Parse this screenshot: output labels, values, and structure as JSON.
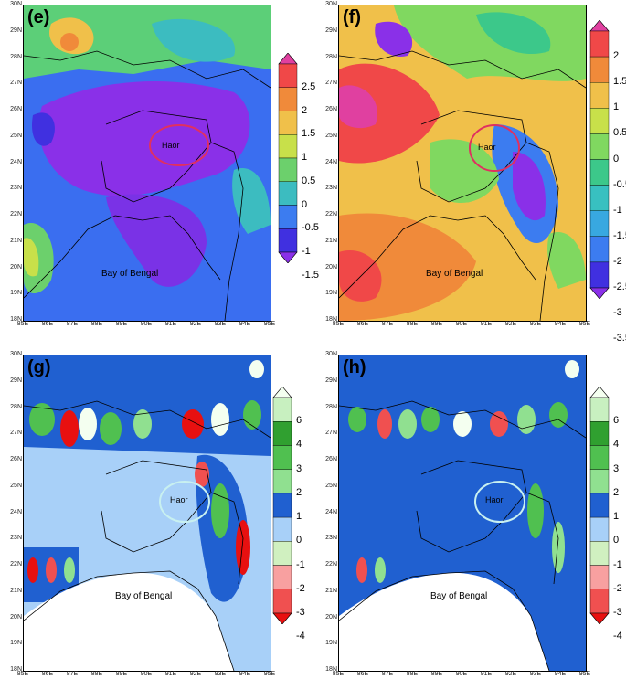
{
  "panels": [
    {
      "label": "(e)",
      "haor": "Haor",
      "bay": "Bay of Bengal",
      "colorbar": {
        "labels": [
          "2.5",
          "2",
          "1.5",
          "1",
          "0.5",
          "0",
          "-0.5",
          "-1",
          "-1.5"
        ],
        "colors": [
          "#e040a0",
          "#f04848",
          "#f08a3a",
          "#f0c04a",
          "#c8e04a",
          "#6cd06c",
          "#3cbcc0",
          "#3c7cf0",
          "#4030e0",
          "#8a30e8"
        ]
      }
    },
    {
      "label": "(f)",
      "haor": "Haor",
      "bay": "Bay of Bengal",
      "colorbar": {
        "labels": [
          "2",
          "1.5",
          "1",
          "0.5",
          "0",
          "-0.5",
          "-1",
          "-1.5",
          "-2",
          "-2.5",
          "-3",
          "-3.5"
        ],
        "colors": [
          "#e040a0",
          "#f04848",
          "#f08a3a",
          "#f0c04a",
          "#c8e04a",
          "#80d860",
          "#3cc88a",
          "#38c0c0",
          "#38a8e0",
          "#3c7cf0",
          "#4030e0",
          "#8a30e8"
        ]
      }
    },
    {
      "label": "(g)",
      "haor": "Haor",
      "bay": "Bay of Bengal",
      "colorbar": {
        "labels": [
          "6",
          "4",
          "3",
          "2",
          "1",
          "0",
          "-1",
          "-2",
          "-3",
          "-4"
        ],
        "colors": [
          "#f4fff0",
          "#c8f0c0",
          "#30a030",
          "#50c050",
          "#90e090",
          "#2060d0",
          "#a8d0f8",
          "#d0f0c0",
          "#f8a0a0",
          "#f05050",
          "#e81010"
        ]
      }
    },
    {
      "label": "(h)",
      "haor": "Haor",
      "bay": "Bay of Bengal",
      "colorbar": {
        "labels": [
          "6",
          "4",
          "3",
          "2",
          "1",
          "0",
          "-1",
          "-2",
          "-3",
          "-4"
        ],
        "colors": [
          "#f4fff0",
          "#c8f0c0",
          "#30a030",
          "#50c050",
          "#90e090",
          "#2060d0",
          "#a8d0f8",
          "#d0f0c0",
          "#f8a0a0",
          "#f05050",
          "#e81010"
        ]
      }
    }
  ],
  "axes": {
    "y_ticks": [
      "30N",
      "29N",
      "28N",
      "27N",
      "26N",
      "25N",
      "24N",
      "23N",
      "22N",
      "21N",
      "20N",
      "19N",
      "18N"
    ],
    "x_ticks": [
      "85E",
      "86E",
      "87E",
      "88E",
      "89E",
      "90E",
      "91E",
      "92E",
      "93E",
      "94E",
      "95E"
    ]
  }
}
